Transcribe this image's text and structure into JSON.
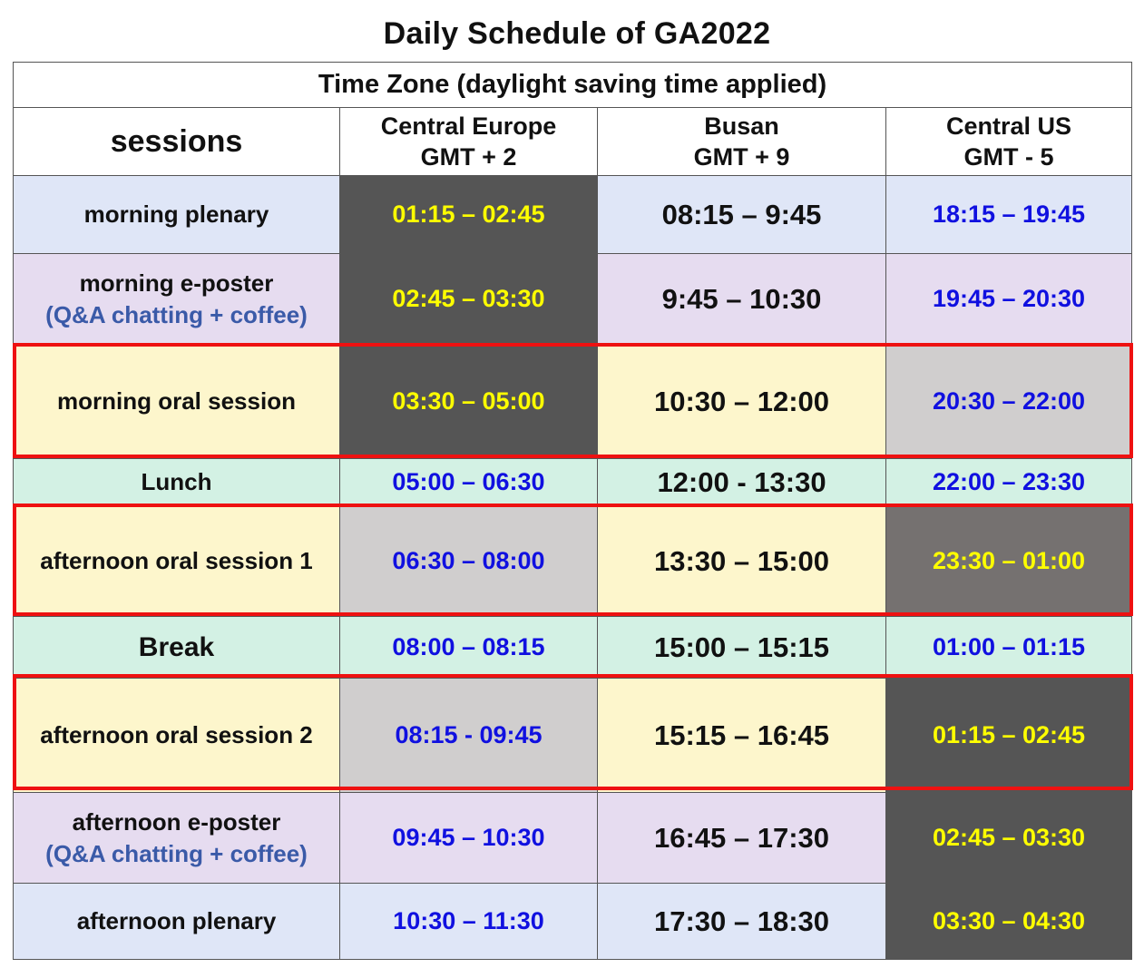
{
  "title": "Daily Schedule of GA2022",
  "time_zone_header": "Time Zone (daylight saving time applied)",
  "sessions_header": "sessions",
  "zones": [
    {
      "name": "Central Europe",
      "offset": "GMT + 2"
    },
    {
      "name": "Busan",
      "offset": "GMT + 9"
    },
    {
      "name": "Central US",
      "offset": "GMT - 5"
    }
  ],
  "rows": [
    {
      "session": "morning plenary",
      "sub": "",
      "europe": "01:15 – 02:45",
      "busan": "08:15 – 9:45",
      "us": "18:15 – 19:45"
    },
    {
      "session": "morning e-poster",
      "sub": "(Q&A chatting + coffee)",
      "europe": "02:45 – 03:30",
      "busan": "9:45 – 10:30",
      "us": "19:45 – 20:30"
    },
    {
      "session": "morning oral session",
      "sub": "",
      "europe": "03:30 – 05:00",
      "busan": "10:30 – 12:00",
      "us": "20:30 – 22:00"
    },
    {
      "session": "Lunch",
      "sub": "",
      "europe": "05:00 – 06:30",
      "busan": "12:00 - 13:30",
      "us": "22:00 – 23:30"
    },
    {
      "session": "afternoon oral session 1",
      "sub": "",
      "europe": "06:30 – 08:00",
      "busan": "13:30 – 15:00",
      "us": "23:30 – 01:00"
    },
    {
      "session": "Break",
      "sub": "",
      "europe": "08:00 – 08:15",
      "busan": "15:00 – 15:15",
      "us": "01:00 – 01:15"
    },
    {
      "session": "afternoon oral session 2",
      "sub": "",
      "europe": "08:15 - 09:45",
      "busan": "15:15 – 16:45",
      "us": "01:15 – 02:45"
    },
    {
      "session": "afternoon e-poster",
      "sub": "(Q&A chatting + coffee)",
      "europe": "09:45 – 10:30",
      "busan": "16:45 – 17:30",
      "us": "02:45 – 03:30"
    },
    {
      "session": "afternoon plenary",
      "sub": "",
      "europe": "10:30 – 11:30",
      "busan": "17:30 – 18:30",
      "us": "03:30 – 04:30"
    }
  ],
  "colors": {
    "highlight_border": "#ee1111",
    "dark_cell": "#555555",
    "yellow_text": "#ffff00",
    "blue_text": "#1010e0"
  }
}
